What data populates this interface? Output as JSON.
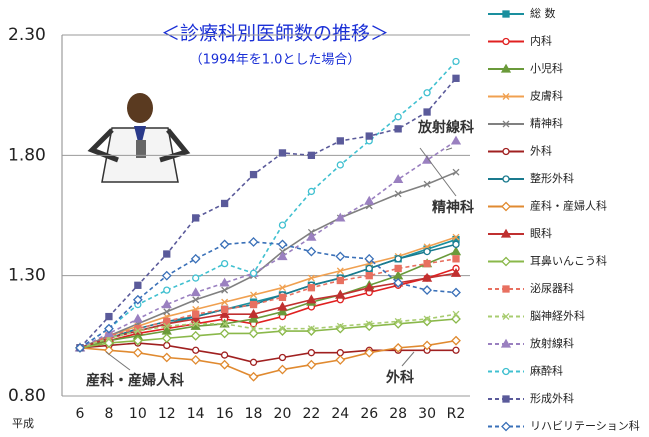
{
  "chart_data": {
    "type": "line",
    "title": "＜診療科別医師数の推移＞",
    "subtitle": "（1994年を1.0とした場合）",
    "xlabel": "平成",
    "categories": [
      "6",
      "8",
      "10",
      "12",
      "14",
      "16",
      "18",
      "20",
      "22",
      "24",
      "26",
      "28",
      "30",
      "R2"
    ],
    "ylim": [
      0.8,
      2.3
    ],
    "yticks": [
      {
        "value": 0.8,
        "label": "0.80"
      },
      {
        "value": 1.3,
        "label": "1.30"
      },
      {
        "value": 1.8,
        "label": "1.80"
      },
      {
        "value": 2.3,
        "label": "2.30"
      }
    ],
    "grid": true,
    "series": [
      {
        "name": "総 数",
        "color": "#1a8f9e",
        "marker": "square",
        "dashed": false,
        "values": [
          1.0,
          1.04,
          1.07,
          1.1,
          1.13,
          1.16,
          1.19,
          1.22,
          1.26,
          1.29,
          1.33,
          1.37,
          1.41,
          1.45
        ]
      },
      {
        "name": "内科",
        "color": "#e02020",
        "marker": "circle",
        "dashed": false,
        "values": [
          1.0,
          1.03,
          1.06,
          1.08,
          1.1,
          1.12,
          1.1,
          1.13,
          1.17,
          1.2,
          1.23,
          1.26,
          1.29,
          1.33
        ]
      },
      {
        "name": "小児科",
        "color": "#6a9a3a",
        "marker": "triangle",
        "dashed": false,
        "values": [
          1.0,
          1.03,
          1.05,
          1.07,
          1.09,
          1.1,
          1.12,
          1.15,
          1.19,
          1.22,
          1.26,
          1.3,
          1.35,
          1.4
        ]
      },
      {
        "name": "皮膚科",
        "color": "#f0a050",
        "marker": "x",
        "dashed": false,
        "values": [
          1.0,
          1.05,
          1.09,
          1.13,
          1.16,
          1.19,
          1.22,
          1.25,
          1.29,
          1.32,
          1.35,
          1.38,
          1.42,
          1.46
        ]
      },
      {
        "name": "精神科",
        "color": "#808080",
        "marker": "x",
        "dashed": false,
        "values": [
          1.0,
          1.05,
          1.1,
          1.15,
          1.2,
          1.24,
          1.3,
          1.4,
          1.48,
          1.54,
          1.59,
          1.64,
          1.68,
          1.73
        ]
      },
      {
        "name": "外科",
        "color": "#a02020",
        "marker": "circle",
        "dashed": false,
        "values": [
          1.0,
          1.01,
          1.02,
          1.01,
          0.99,
          0.97,
          0.94,
          0.96,
          0.98,
          0.98,
          0.99,
          0.99,
          0.99,
          0.99
        ]
      },
      {
        "name": "整形外科",
        "color": "#1a7a8e",
        "marker": "circle",
        "dashed": false,
        "values": [
          1.0,
          1.04,
          1.08,
          1.11,
          1.13,
          1.16,
          1.18,
          1.22,
          1.26,
          1.29,
          1.33,
          1.37,
          1.4,
          1.43
        ]
      },
      {
        "name": "産科・産婦人科",
        "color": "#e08a30",
        "marker": "diamond",
        "dashed": false,
        "values": [
          1.0,
          0.99,
          0.98,
          0.96,
          0.95,
          0.93,
          0.88,
          0.91,
          0.93,
          0.95,
          0.98,
          1.0,
          1.01,
          1.03
        ]
      },
      {
        "name": "眼科",
        "color": "#c03030",
        "marker": "triangle",
        "dashed": false,
        "values": [
          1.0,
          1.04,
          1.07,
          1.1,
          1.12,
          1.14,
          1.14,
          1.17,
          1.2,
          1.22,
          1.25,
          1.27,
          1.29,
          1.31
        ]
      },
      {
        "name": "耳鼻いんこう科",
        "color": "#8ab84a",
        "marker": "diamond",
        "dashed": false,
        "values": [
          1.0,
          1.02,
          1.03,
          1.04,
          1.05,
          1.06,
          1.06,
          1.07,
          1.07,
          1.08,
          1.09,
          1.1,
          1.11,
          1.12
        ]
      },
      {
        "name": "泌尿器科",
        "color": "#e87060",
        "marker": "square",
        "dashed": true,
        "values": [
          1.0,
          1.05,
          1.08,
          1.11,
          1.14,
          1.16,
          1.18,
          1.21,
          1.25,
          1.28,
          1.3,
          1.33,
          1.35,
          1.37
        ]
      },
      {
        "name": "脳神経外科",
        "color": "#a8cc70",
        "marker": "x",
        "dashed": true,
        "values": [
          1.0,
          1.04,
          1.07,
          1.09,
          1.1,
          1.1,
          1.08,
          1.08,
          1.08,
          1.09,
          1.1,
          1.11,
          1.12,
          1.14
        ]
      },
      {
        "name": "放射線科",
        "color": "#9a80c0",
        "marker": "triangle",
        "dashed": true,
        "values": [
          1.0,
          1.06,
          1.12,
          1.18,
          1.23,
          1.27,
          1.31,
          1.38,
          1.46,
          1.54,
          1.61,
          1.7,
          1.78,
          1.86
        ]
      },
      {
        "name": "麻酔科",
        "color": "#40c0d0",
        "marker": "circle",
        "dashed": true,
        "values": [
          1.0,
          1.08,
          1.18,
          1.24,
          1.29,
          1.35,
          1.31,
          1.51,
          1.65,
          1.76,
          1.86,
          1.96,
          2.06,
          2.19
        ]
      },
      {
        "name": "形成外科",
        "color": "#5a5a9a",
        "marker": "square",
        "dashed": true,
        "values": [
          1.0,
          1.13,
          1.26,
          1.39,
          1.54,
          1.6,
          1.72,
          1.81,
          1.8,
          1.86,
          1.88,
          1.91,
          1.98,
          2.12
        ]
      },
      {
        "name": "リハビリテーション科",
        "color": "#3a70b8",
        "marker": "diamond",
        "dashed": true,
        "values": [
          1.0,
          1.08,
          1.2,
          1.3,
          1.37,
          1.43,
          1.44,
          1.43,
          1.4,
          1.38,
          1.37,
          1.27,
          1.24,
          1.23
        ]
      }
    ],
    "annotations": [
      "放射線科",
      "精神科",
      "産科・産婦人科",
      "外科"
    ]
  }
}
